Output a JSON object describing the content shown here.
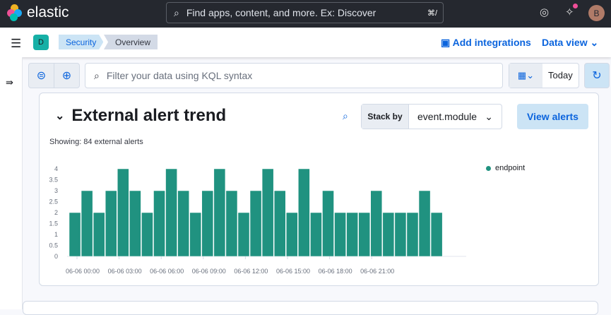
{
  "header": {
    "brand": "elastic",
    "search_placeholder": "Find apps, content, and more. Ex: Discover",
    "shortcut": "⌘/",
    "avatar": "B"
  },
  "nav": {
    "space": "D",
    "breadcrumbs": [
      "Security",
      "Overview"
    ],
    "add_integrations": "Add integrations",
    "data_view": "Data view"
  },
  "query": {
    "placeholder": "Filter your data using KQL syntax",
    "date": "Today"
  },
  "panel": {
    "title": "External alert trend",
    "stack_by_label": "Stack by",
    "stack_by_value": "event.module",
    "view_alerts": "View alerts",
    "showing": "Showing: 84 external alerts"
  },
  "chart_data": {
    "type": "bar",
    "ylim": [
      0,
      4
    ],
    "yticks": [
      "0",
      "0.5",
      "1",
      "1.5",
      "2",
      "2.5",
      "3",
      "3.5",
      "4"
    ],
    "xticks": [
      "06-06 00:00",
      "06-06 03:00",
      "06-06 06:00",
      "06-06 09:00",
      "06-06 12:00",
      "06-06 15:00",
      "06-06 18:00",
      "06-06 21:00"
    ],
    "series": [
      {
        "name": "endpoint",
        "color": "#209280",
        "values": [
          2,
          3,
          2,
          3,
          4,
          3,
          2,
          3,
          4,
          3,
          2,
          3,
          4,
          3,
          2,
          3,
          4,
          3,
          2,
          4,
          2,
          3,
          2,
          2,
          2,
          3,
          2,
          2,
          2,
          3,
          2
        ]
      }
    ],
    "legend": "top-right"
  }
}
